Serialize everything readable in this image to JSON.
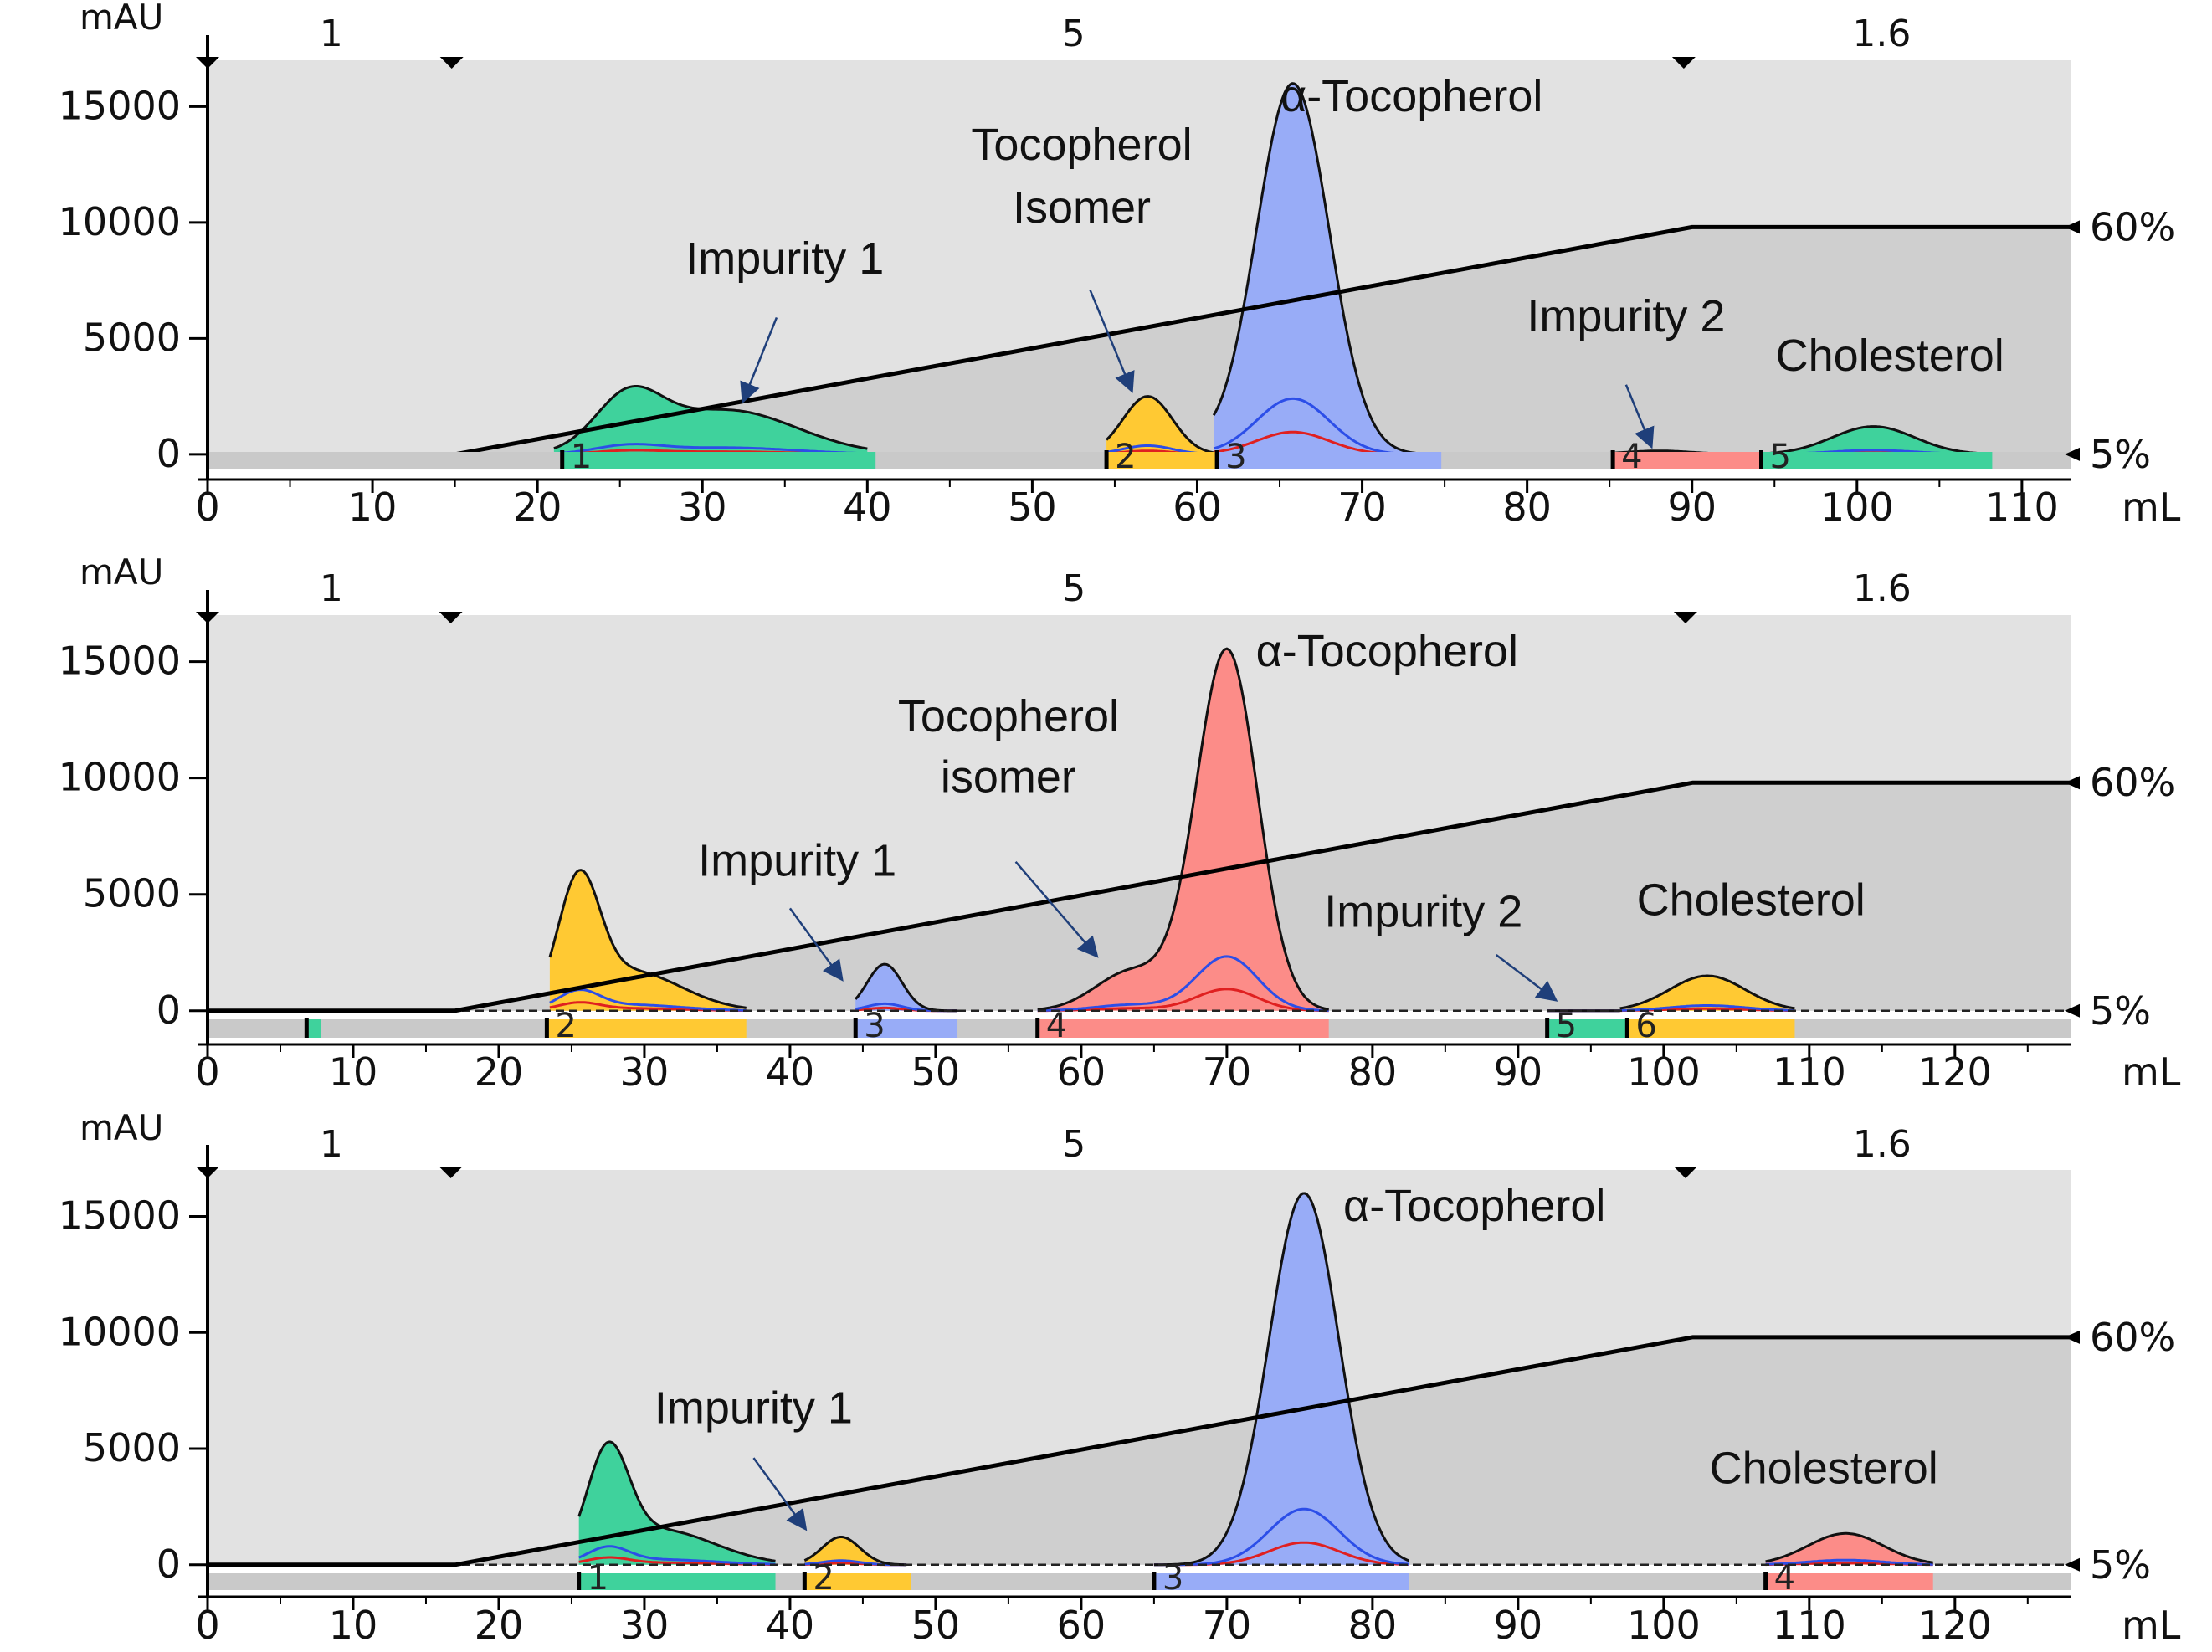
{
  "chart_data": [
    {
      "type": "chromatogram",
      "panel": "top",
      "y_unit": "mAU",
      "x_unit": "mL",
      "xlim": [
        0,
        113
      ],
      "ylim": [
        -800,
        17000
      ],
      "xticks": [
        "0",
        "10",
        "20",
        "30",
        "40",
        "50",
        "60",
        "70",
        "80",
        "90",
        "100",
        "110"
      ],
      "yticks": [
        "0",
        "5000",
        "10000",
        "15000"
      ],
      "flow_labels": [
        {
          "x": 7.5,
          "text": "1"
        },
        {
          "x": 52.5,
          "text": "5"
        },
        {
          "x": 101.5,
          "text": "1.6"
        }
      ],
      "markers_x": [
        0,
        14.8,
        89.5
      ],
      "gradient": {
        "points": [
          [
            0,
            5
          ],
          [
            15,
            5
          ],
          [
            90,
            60
          ],
          [
            113,
            60
          ]
        ],
        "labels": [
          "5%",
          "60%"
        ]
      },
      "peaks": [
        {
          "color": "#3fd29c",
          "mu": [
            25.5,
            31.5
          ],
          "sigma": [
            2.0,
            4.2
          ],
          "amp": [
            2200,
            1900
          ],
          "range": [
            21,
            40
          ]
        },
        {
          "color": "#ffc933",
          "mu": [
            57.0
          ],
          "sigma": [
            1.5
          ],
          "amp": [
            2500
          ],
          "range": [
            54.5,
            61
          ]
        },
        {
          "color": "#98acf7",
          "mu": [
            58.0,
            65.8
          ],
          "sigma": [
            1.5,
            2.2
          ],
          "amp": [
            1500,
            16000
          ],
          "range": [
            61,
            74
          ]
        },
        {
          "color": "#fc8c88",
          "mu": [
            88.0
          ],
          "sigma": [
            2.0
          ],
          "amp": [
            150
          ],
          "range": [
            85,
            94
          ]
        },
        {
          "color": "#3fd29c",
          "mu": [
            101.0
          ],
          "sigma": [
            2.5
          ],
          "amp": [
            1200
          ],
          "range": [
            94,
            108
          ]
        }
      ],
      "fractions": [
        {
          "label": "1",
          "range": [
            21.5,
            40.5
          ],
          "color": "#3fd29c"
        },
        {
          "label": "2",
          "range": [
            54.5,
            61.2
          ],
          "color": "#ffc933"
        },
        {
          "label": "3",
          "range": [
            61.2,
            74.8
          ],
          "color": "#98acf7"
        },
        {
          "label": "4",
          "range": [
            85.2,
            94.2
          ],
          "color": "#fc8c88"
        },
        {
          "label": "5",
          "range": [
            94.2,
            108.2
          ],
          "color": "#3fd29c"
        }
      ],
      "annotations": [
        {
          "text": "Impurity 1",
          "x": 35,
          "y": 7800
        },
        {
          "text": "Tocopherol",
          "x": 53,
          "y": 12700
        },
        {
          "text": "Isomer",
          "x": 53,
          "y": 10000
        },
        {
          "text": "α-Tocopherol",
          "x": 73,
          "y": 14800
        },
        {
          "text": "Impurity 2",
          "x": 86,
          "y": 5300
        },
        {
          "text": "Cholesterol",
          "x": 102,
          "y": 3600
        }
      ],
      "arrows": [
        [
          [
            34.5,
            5900
          ],
          [
            32.5,
            2350
          ]
        ],
        [
          [
            53.5,
            7100
          ],
          [
            56.0,
            2800
          ]
        ],
        [
          [
            86.0,
            3000
          ],
          [
            87.5,
            400
          ]
        ]
      ]
    },
    {
      "type": "chromatogram",
      "panel": "middle",
      "y_unit": "mAU",
      "x_unit": "mL",
      "xlim": [
        0,
        128
      ],
      "ylim": [
        -800,
        17000
      ],
      "xticks": [
        "0",
        "10",
        "20",
        "30",
        "40",
        "50",
        "60",
        "70",
        "80",
        "90",
        "100",
        "110",
        "120"
      ],
      "yticks": [
        "0",
        "5000",
        "10000",
        "15000"
      ],
      "flow_labels": [
        {
          "x": 8.5,
          "text": "1"
        },
        {
          "x": 59.5,
          "text": "5"
        },
        {
          "x": 115.0,
          "text": "1.6"
        }
      ],
      "markers_x": [
        0,
        16.7,
        101.5
      ],
      "gradient": {
        "points": [
          [
            0,
            5
          ],
          [
            17,
            5
          ],
          [
            102,
            60
          ],
          [
            128,
            60
          ]
        ],
        "labels": [
          "5%",
          "60%"
        ]
      },
      "peaks": [
        {
          "color": "#ffc933",
          "mu": [
            25.5,
            29.0
          ],
          "sigma": [
            1.4,
            3.5
          ],
          "amp": [
            5000,
            1700
          ],
          "range": [
            23.5,
            37
          ]
        },
        {
          "color": "#98acf7",
          "mu": [
            46.5
          ],
          "sigma": [
            1.2
          ],
          "amp": [
            2000
          ],
          "range": [
            44.5,
            51.5
          ]
        },
        {
          "color": "#fc8c88",
          "mu": [
            63.5,
            70.0
          ],
          "sigma": [
            2.5,
            2.1
          ],
          "amp": [
            1700,
            15500
          ],
          "range": [
            57,
            77
          ]
        },
        {
          "color": "#3fd29c",
          "mu": [
            95.0
          ],
          "sigma": [
            1.0
          ],
          "amp": [
            0
          ],
          "range": [
            92,
            97
          ]
        },
        {
          "color": "#ffc933",
          "mu": [
            103.0
          ],
          "sigma": [
            2.6
          ],
          "amp": [
            1500
          ],
          "range": [
            97,
            109
          ]
        }
      ],
      "fractions": [
        {
          "label": "",
          "range": [
            6.8,
            7.8
          ],
          "color": "#3fd29c"
        },
        {
          "label": "2",
          "range": [
            23.3,
            37.0
          ],
          "color": "#ffc933"
        },
        {
          "label": "3",
          "range": [
            44.5,
            51.5
          ],
          "color": "#98acf7"
        },
        {
          "label": "4",
          "range": [
            57.0,
            77.0
          ],
          "color": "#fc8c88"
        },
        {
          "label": "5",
          "range": [
            92.0,
            97.5
          ],
          "color": "#3fd29c"
        },
        {
          "label": "6",
          "range": [
            97.5,
            109.0
          ],
          "color": "#ffc933"
        }
      ],
      "annotations": [
        {
          "text": "Impurity 1",
          "x": 40.5,
          "y": 5800
        },
        {
          "text": "Tocopherol",
          "x": 55,
          "y": 12000
        },
        {
          "text": "isomer",
          "x": 55,
          "y": 9400
        },
        {
          "text": "α-Tocopherol",
          "x": 81,
          "y": 14800
        },
        {
          "text": "Impurity 2",
          "x": 83.5,
          "y": 3600
        },
        {
          "text": "Cholesterol",
          "x": 106,
          "y": 4100
        }
      ],
      "arrows": [
        [
          [
            40.0,
            4400
          ],
          [
            43.5,
            1400
          ]
        ],
        [
          [
            55.5,
            6400
          ],
          [
            61.0,
            2400
          ]
        ],
        [
          [
            88.5,
            2400
          ],
          [
            92.5,
            500
          ]
        ]
      ]
    },
    {
      "type": "chromatogram",
      "panel": "bottom",
      "y_unit": "mAU",
      "x_unit": "mL",
      "xlim": [
        0,
        128
      ],
      "ylim": [
        -800,
        17000
      ],
      "xticks": [
        "0",
        "10",
        "20",
        "30",
        "40",
        "50",
        "60",
        "70",
        "80",
        "90",
        "100",
        "110",
        "120"
      ],
      "yticks": [
        "0",
        "5000",
        "10000",
        "15000"
      ],
      "flow_labels": [
        {
          "x": 8.5,
          "text": "1"
        },
        {
          "x": 59.5,
          "text": "5"
        },
        {
          "x": 115.0,
          "text": "1.6"
        }
      ],
      "markers_x": [
        0,
        16.7,
        101.5
      ],
      "gradient": {
        "points": [
          [
            0,
            5
          ],
          [
            17,
            5
          ],
          [
            102,
            60
          ],
          [
            128,
            60
          ]
        ],
        "labels": [
          "5%",
          "60%"
        ]
      },
      "peaks": [
        {
          "color": "#3fd29c",
          "mu": [
            27.5,
            31.0
          ],
          "sigma": [
            1.4,
            3.8
          ],
          "amp": [
            4300,
            1500
          ],
          "range": [
            25.5,
            39
          ]
        },
        {
          "color": "#ffc933",
          "mu": [
            43.5
          ],
          "sigma": [
            1.3
          ],
          "amp": [
            1200
          ],
          "range": [
            41,
            48
          ]
        },
        {
          "color": "#98acf7",
          "mu": [
            75.3
          ],
          "sigma": [
            2.4
          ],
          "amp": [
            16000
          ],
          "range": [
            65,
            82.5
          ]
        },
        {
          "color": "#fc8c88",
          "mu": [
            112.5
          ],
          "sigma": [
            2.6
          ],
          "amp": [
            1350
          ],
          "range": [
            107,
            118.5
          ]
        }
      ],
      "fractions": [
        {
          "label": "1",
          "range": [
            25.5,
            39.0
          ],
          "color": "#3fd29c"
        },
        {
          "label": "2",
          "range": [
            41.0,
            48.3
          ],
          "color": "#ffc933"
        },
        {
          "label": "3",
          "range": [
            65.0,
            82.5
          ],
          "color": "#98acf7"
        },
        {
          "label": "4",
          "range": [
            107.0,
            118.5
          ],
          "color": "#fc8c88"
        }
      ],
      "annotations": [
        {
          "text": "Impurity 1",
          "x": 37.5,
          "y": 6100
        },
        {
          "text": "α-Tocopherol",
          "x": 87,
          "y": 14800
        },
        {
          "text": "Cholesterol",
          "x": 111,
          "y": 3500
        }
      ],
      "arrows": [
        [
          [
            37.5,
            4600
          ],
          [
            41.0,
            1600
          ]
        ]
      ]
    }
  ]
}
